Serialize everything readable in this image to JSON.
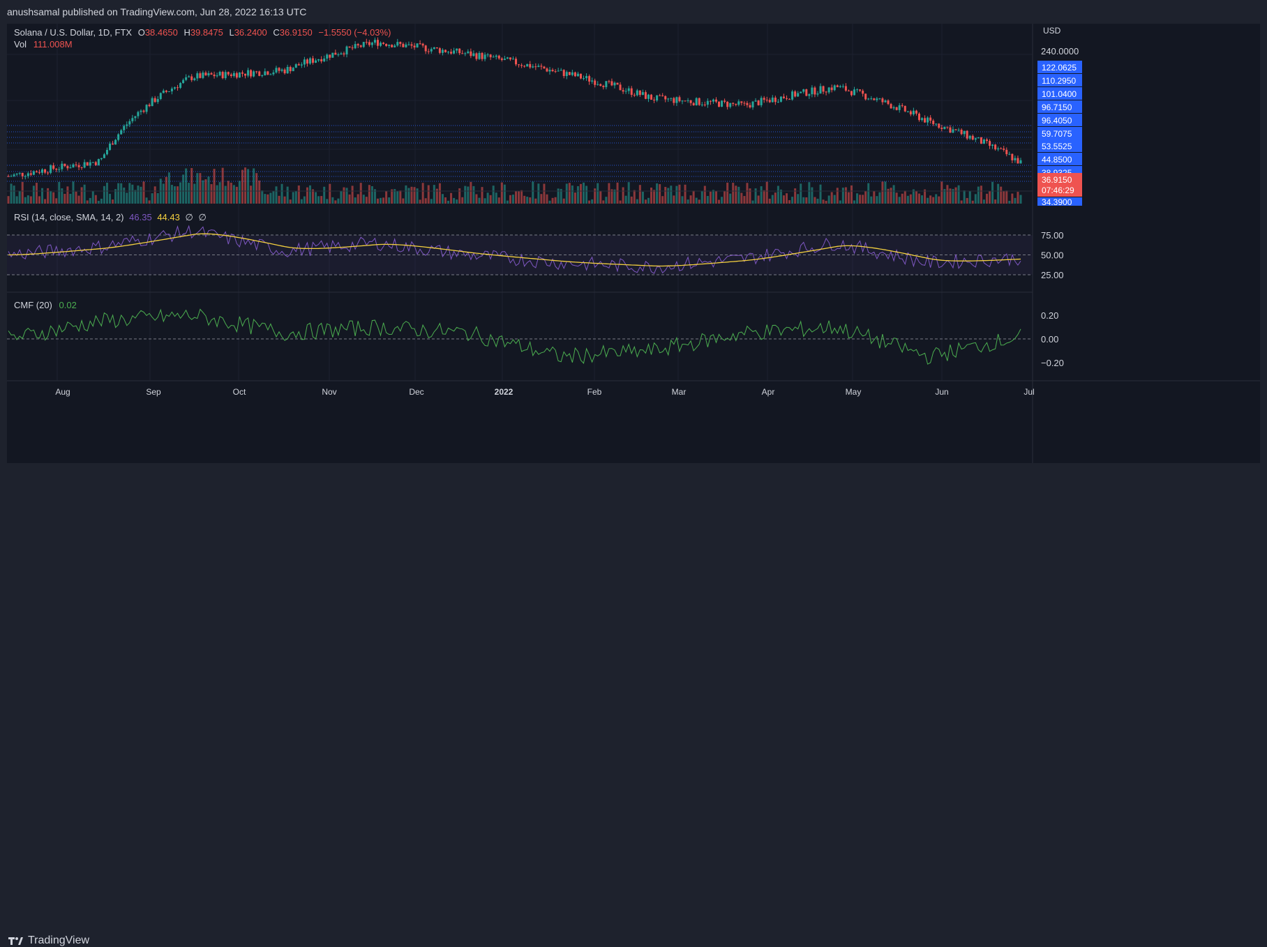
{
  "header": {
    "published": "anushsamal published on TradingView.com, Jun 28, 2022 16:13 UTC"
  },
  "legend": {
    "symbol": "Solana / U.S. Dollar, 1D, FTX",
    "o_label": "O",
    "o": "38.4650",
    "h_label": "H",
    "h": "39.8475",
    "l_label": "L",
    "l": "36.2400",
    "c_label": "C",
    "c": "36.9150",
    "change": "−1.5550 (−4.03%)",
    "vol_label": "Vol",
    "vol": "111.008M"
  },
  "rsi_legend": {
    "label": "RSI (14, close, SMA, 14, 2)",
    "rsi": "46.35",
    "sma": "44.43",
    "ph1": "∅",
    "ph2": "∅"
  },
  "cmf_legend": {
    "label": "CMF (20)",
    "value": "0.02"
  },
  "price_axis": {
    "currency": "USD",
    "top_tick": "240.0000",
    "levels": [
      "122.0625",
      "110.2950",
      "101.0400",
      "96.7150",
      "96.4050",
      "59.7075",
      "53.5525",
      "44.8500",
      "38.9325"
    ],
    "current": "36.9150",
    "countdown": "07:46:29",
    "bottom": "34.3900"
  },
  "rsi_axis": [
    "75.00",
    "50.00",
    "25.00"
  ],
  "cmf_axis": [
    "0.20",
    "0.00",
    "−0.20"
  ],
  "time_axis": [
    "Aug",
    "Sep",
    "Oct",
    "Nov",
    "Dec",
    "2022",
    "Feb",
    "Mar",
    "Apr",
    "May",
    "Jun",
    "Jul"
  ],
  "brand": "TradingView",
  "colors": {
    "up": "#26a69a",
    "down": "#ef5350",
    "level": "#2962ff",
    "rsi": "#7e57c2",
    "rsi_sma": "#f4d03f",
    "cmf": "#4caf50",
    "bg": "#131722"
  },
  "chart_data": {
    "type": "candlestick",
    "title": "Solana / U.S. Dollar, 1D, FTX",
    "x": [
      "2021-07",
      "2021-08",
      "2021-09",
      "2021-10",
      "2021-11",
      "2021-12",
      "2022-01",
      "2022-02",
      "2022-03",
      "2022-04",
      "2022-05",
      "2022-06"
    ],
    "series": [
      {
        "name": "Price",
        "values": [
          30,
          38,
          140,
          155,
          240,
          200,
          150,
          100,
          90,
          120,
          70,
          37
        ]
      },
      {
        "name": "RSI",
        "values": [
          50,
          60,
          80,
          55,
          65,
          50,
          40,
          35,
          45,
          65,
          40,
          46
        ]
      },
      {
        "name": "CMF",
        "values": [
          0.0,
          0.15,
          0.2,
          0.05,
          0.1,
          0.05,
          -0.15,
          -0.1,
          0.05,
          0.1,
          -0.15,
          0.02
        ]
      }
    ],
    "price_levels": [
      122.0625,
      110.295,
      101.04,
      96.715,
      96.405,
      59.7075,
      53.5525,
      44.85,
      38.9325
    ],
    "rsi_bands": [
      75,
      50,
      25
    ],
    "cmf_ticks": [
      0.2,
      0.0,
      -0.2
    ]
  }
}
